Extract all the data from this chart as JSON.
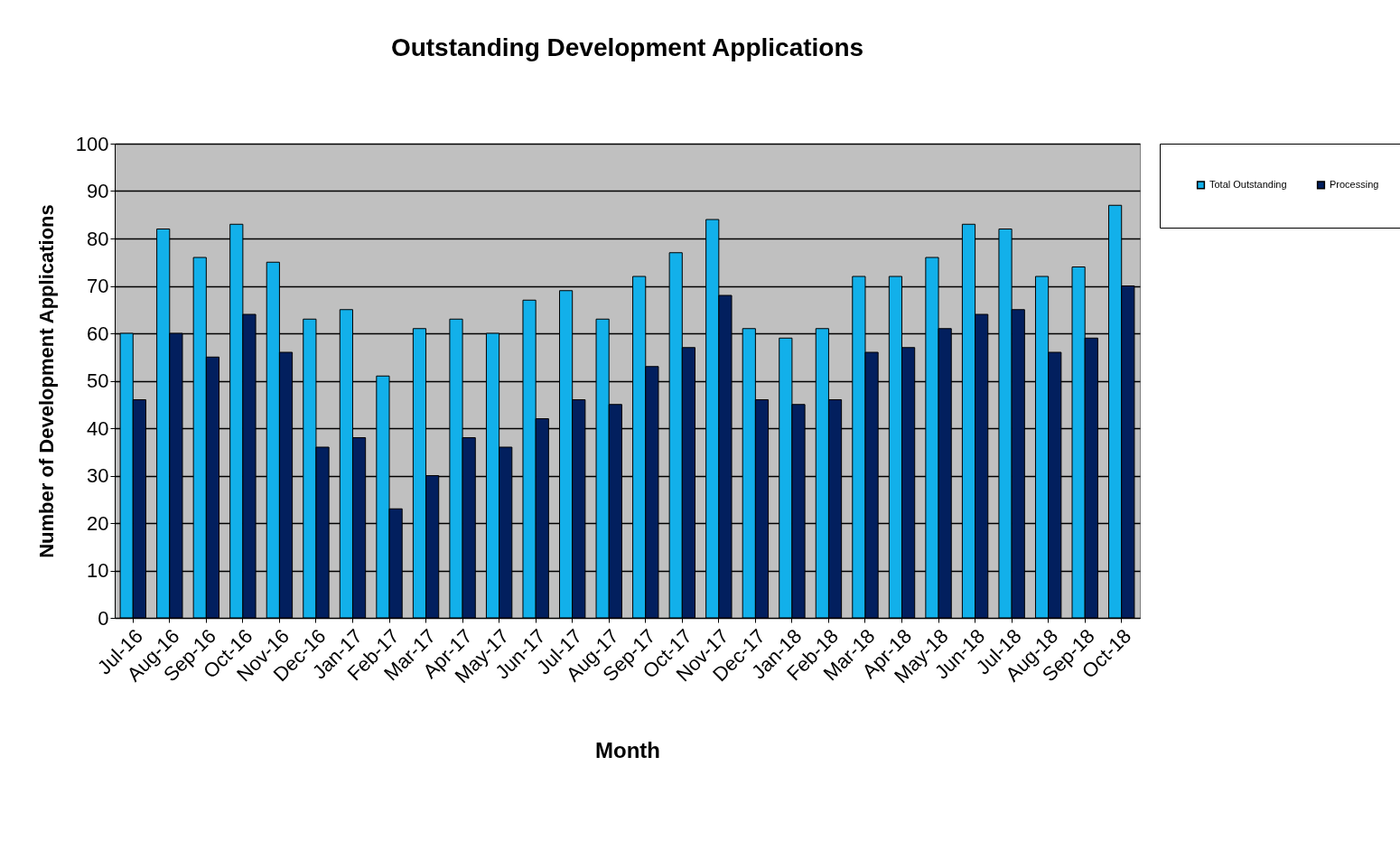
{
  "chart_data": {
    "type": "bar",
    "title": "Outstanding Development Applications",
    "xlabel": "Month",
    "ylabel": "Number of Development Applications",
    "categories": [
      "Jul-16",
      "Aug-16",
      "Sep-16",
      "Oct-16",
      "Nov-16",
      "Dec-16",
      "Jan-17",
      "Feb-17",
      "Mar-17",
      "Apr-17",
      "May-17",
      "Jun-17",
      "Jul-17",
      "Aug-17",
      "Sep-17",
      "Oct-17",
      "Nov-17",
      "Dec-17",
      "Jan-18",
      "Feb-18",
      "Mar-18",
      "Apr-18",
      "May-18",
      "Jun-18",
      "Jul-18",
      "Aug-18",
      "Sep-18",
      "Oct-18"
    ],
    "series": [
      {
        "name": "Total Outstanding",
        "color": "#12b0ea",
        "values": [
          60,
          82,
          76,
          83,
          75,
          63,
          65,
          51,
          61,
          63,
          60,
          67,
          69,
          63,
          72,
          77,
          84,
          61,
          59,
          61,
          72,
          72,
          76,
          83,
          82,
          72,
          74,
          87
        ]
      },
      {
        "name": "Processing",
        "color": "#021f5e",
        "values": [
          46,
          60,
          55,
          64,
          56,
          36,
          38,
          23,
          30,
          38,
          36,
          42,
          46,
          45,
          53,
          57,
          68,
          46,
          45,
          46,
          56,
          57,
          61,
          64,
          65,
          56,
          59,
          70
        ]
      }
    ],
    "ylim": [
      0,
      100
    ],
    "yticks": [
      0,
      10,
      20,
      30,
      40,
      50,
      60,
      70,
      80,
      90,
      100
    ],
    "grid": "y",
    "legend": "right"
  }
}
